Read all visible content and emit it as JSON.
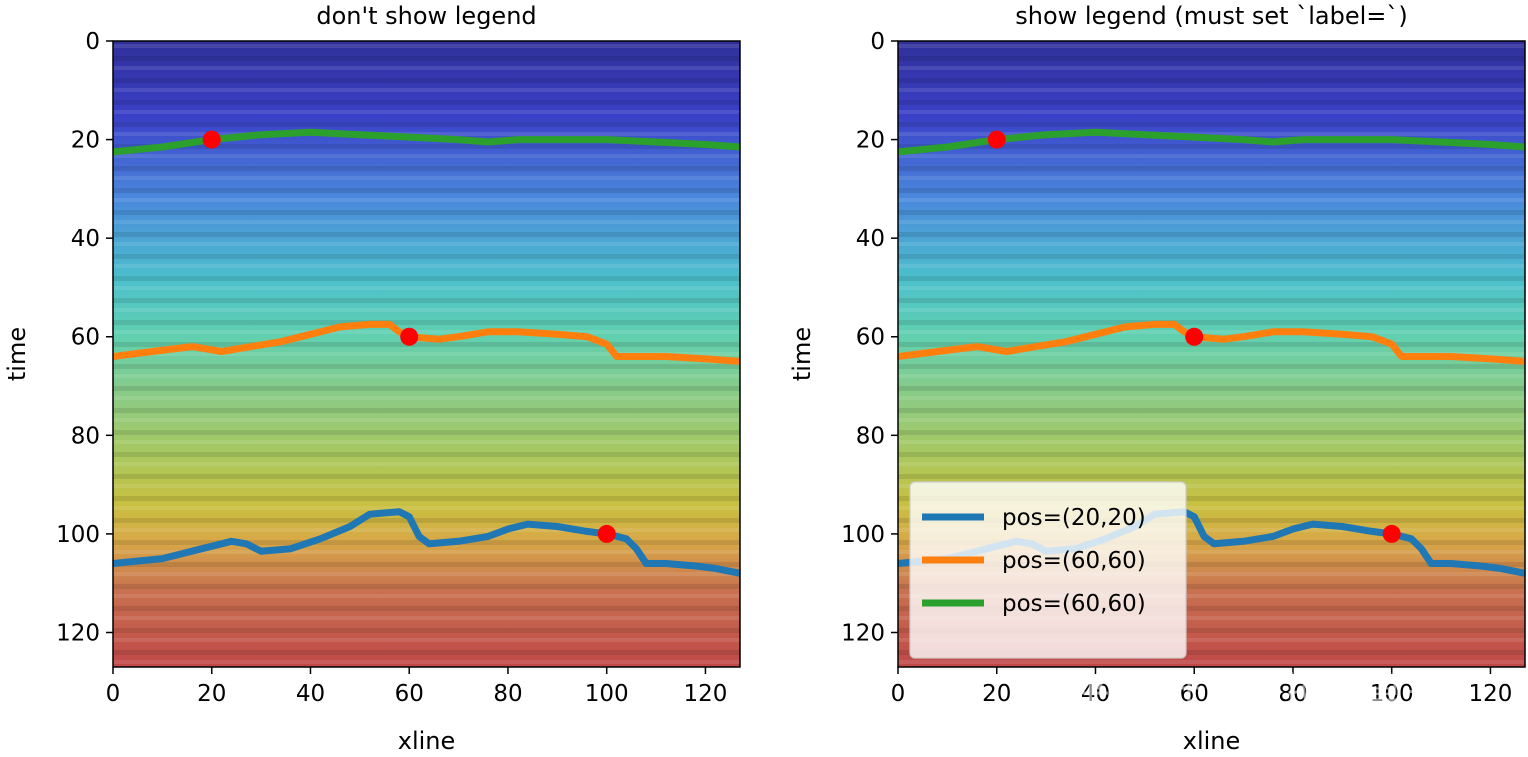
{
  "colors": {
    "pos_20_20": "#1f77b4",
    "pos_60_60_a": "#ff7f0e",
    "pos_60_60_b": "#2ca02c",
    "point": "#ff0000"
  },
  "image": {
    "description_colormap": "jet",
    "alpha": 0.7
  },
  "watermark": {
    "text": "知乎 @叶刘克拉克莫夫"
  },
  "chart_data": [
    {
      "type": "line",
      "title": "don't show legend",
      "xlabel": "xline",
      "ylabel": "time",
      "xlim": [
        0,
        127
      ],
      "ylim": [
        127,
        0
      ],
      "xticks": [
        0,
        20,
        40,
        60,
        80,
        100,
        120
      ],
      "yticks": [
        0,
        20,
        40,
        60,
        80,
        100,
        120
      ],
      "legend": null,
      "series": [
        {
          "name": "pos=(20,20)",
          "color": "#1f77b4",
          "x": [
            0,
            10,
            18,
            24,
            27,
            30,
            36,
            42,
            48,
            52,
            58,
            60,
            62,
            64,
            70,
            76,
            80,
            84,
            90,
            96,
            100,
            104,
            106,
            108,
            112,
            118,
            122,
            127
          ],
          "y": [
            106,
            105,
            103,
            101.5,
            102,
            103.5,
            103,
            101,
            98.5,
            96,
            95.5,
            96.5,
            100.5,
            102,
            101.5,
            100.5,
            99,
            98,
            98.5,
            99.5,
            100,
            101,
            103,
            106,
            106,
            106.5,
            107,
            108
          ]
        },
        {
          "name": "pos=(60,60)",
          "color": "#ff7f0e",
          "x": [
            0,
            8,
            16,
            22,
            28,
            34,
            40,
            46,
            52,
            56,
            58,
            60,
            66,
            70,
            76,
            82,
            90,
            96,
            100,
            102,
            106,
            112,
            120,
            127
          ],
          "y": [
            64,
            63,
            62,
            63,
            62,
            61,
            59.5,
            58,
            57.5,
            57.5,
            59,
            60,
            60.5,
            60,
            59,
            59,
            59.5,
            60,
            61.5,
            64,
            64,
            64,
            64.5,
            65
          ]
        },
        {
          "name": "pos=(60,60)",
          "color": "#2ca02c",
          "x": [
            0,
            10,
            20,
            30,
            40,
            50,
            60,
            70,
            76,
            82,
            90,
            100,
            110,
            120,
            127
          ],
          "y": [
            22.5,
            21.5,
            20,
            19,
            18.5,
            19,
            19.5,
            20,
            20.5,
            20,
            20,
            20,
            20.5,
            21,
            21.5
          ]
        }
      ],
      "points": {
        "x": [
          20,
          60,
          100
        ],
        "y": [
          20,
          60,
          100
        ],
        "color": "#ff0000"
      }
    },
    {
      "type": "line",
      "title": "show legend (must set `label=`)",
      "xlabel": "xline",
      "ylabel": "time",
      "xlim": [
        0,
        127
      ],
      "ylim": [
        127,
        0
      ],
      "xticks": [
        0,
        20,
        40,
        60,
        80,
        100,
        120
      ],
      "yticks": [
        0,
        20,
        40,
        60,
        80,
        100,
        120
      ],
      "legend": "lower-left",
      "series": [
        {
          "name": "pos=(20,20)",
          "color": "#1f77b4",
          "x": [
            0,
            10,
            18,
            24,
            27,
            30,
            36,
            42,
            48,
            52,
            58,
            60,
            62,
            64,
            70,
            76,
            80,
            84,
            90,
            96,
            100,
            104,
            106,
            108,
            112,
            118,
            122,
            127
          ],
          "y": [
            106,
            105,
            103,
            101.5,
            102,
            103.5,
            103,
            101,
            98.5,
            96,
            95.5,
            96.5,
            100.5,
            102,
            101.5,
            100.5,
            99,
            98,
            98.5,
            99.5,
            100,
            101,
            103,
            106,
            106,
            106.5,
            107,
            108
          ]
        },
        {
          "name": "pos=(60,60)",
          "color": "#ff7f0e",
          "x": [
            0,
            8,
            16,
            22,
            28,
            34,
            40,
            46,
            52,
            56,
            58,
            60,
            66,
            70,
            76,
            82,
            90,
            96,
            100,
            102,
            106,
            112,
            120,
            127
          ],
          "y": [
            64,
            63,
            62,
            63,
            62,
            61,
            59.5,
            58,
            57.5,
            57.5,
            59,
            60,
            60.5,
            60,
            59,
            59,
            59.5,
            60,
            61.5,
            64,
            64,
            64,
            64.5,
            65
          ]
        },
        {
          "name": "pos=(60,60)",
          "color": "#2ca02c",
          "x": [
            0,
            10,
            20,
            30,
            40,
            50,
            60,
            70,
            76,
            82,
            90,
            100,
            110,
            120,
            127
          ],
          "y": [
            22.5,
            21.5,
            20,
            19,
            18.5,
            19,
            19.5,
            20,
            20.5,
            20,
            20,
            20,
            20.5,
            21,
            21.5
          ]
        }
      ],
      "points": {
        "x": [
          20,
          60,
          100
        ],
        "y": [
          20,
          60,
          100
        ],
        "color": "#ff0000"
      }
    }
  ]
}
